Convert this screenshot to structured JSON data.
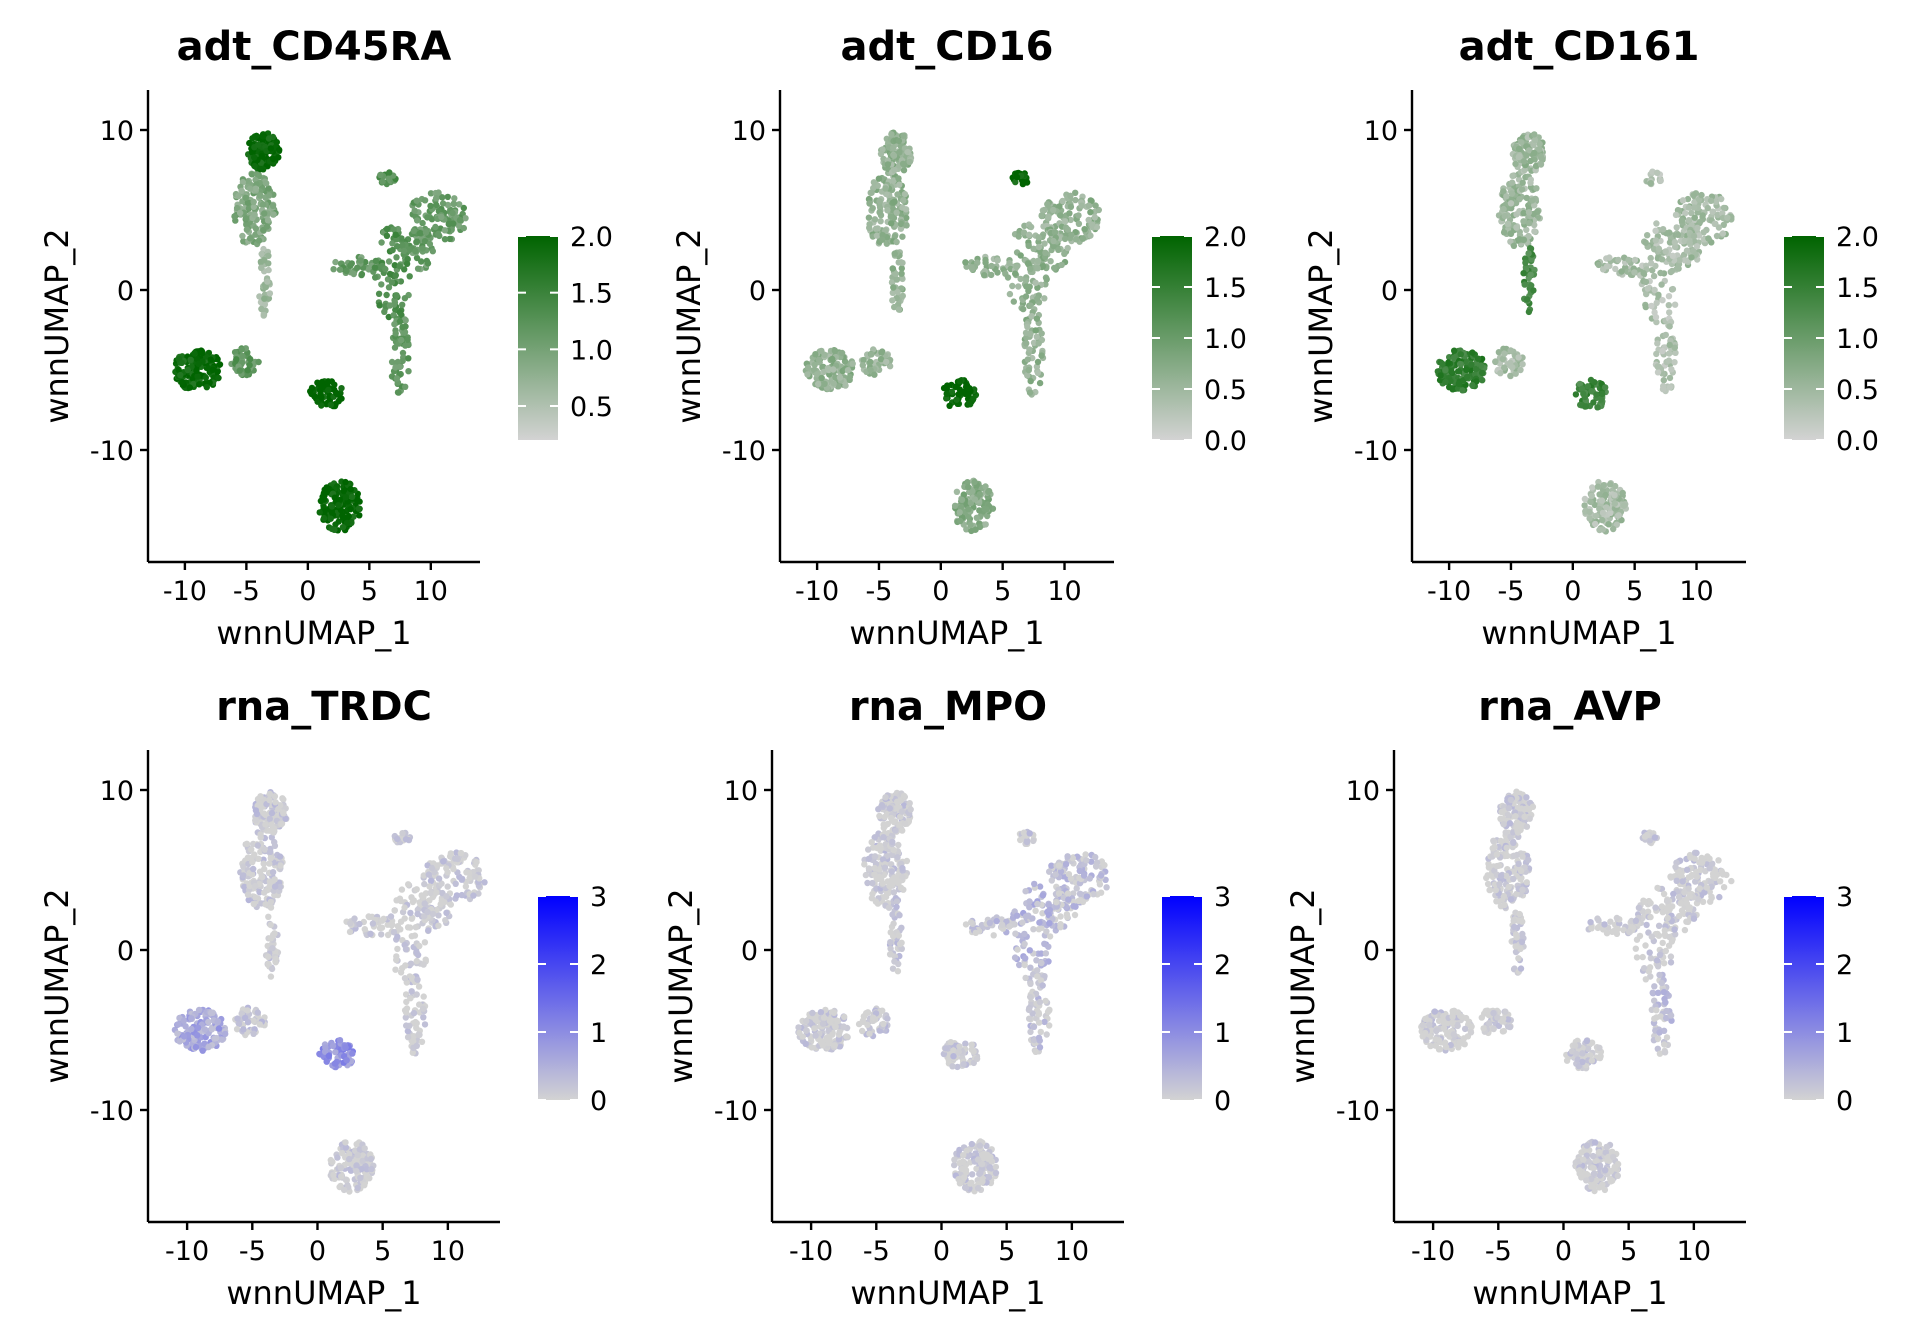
{
  "figure": {
    "xlabel": "wnnUMAP_1",
    "ylabel": "wnnUMAP_2"
  },
  "chart_data": [
    {
      "type": "scatter",
      "title": "adt_CD45RA",
      "xlabel": "wnnUMAP_1",
      "ylabel": "wnnUMAP_2",
      "xlim": [
        -13,
        14
      ],
      "ylim": [
        -17,
        12.5
      ],
      "xticks": [
        -10,
        -5,
        0,
        5,
        10
      ],
      "yticks": [
        10,
        0,
        -10
      ],
      "color_low": "#d3d3d3",
      "color_high": "#006400",
      "legend": {
        "min": 0.2,
        "max": 2.0,
        "ticks": [
          2.0,
          1.5,
          1.0,
          0.5
        ],
        "tick_labels": [
          "2.0",
          "1.5",
          "1.0",
          "0.5"
        ],
        "position": "right"
      },
      "region_levels": [
        0.9,
        1.95,
        0.6,
        1.3,
        1.3,
        1.15,
        1.9,
        1.2,
        2.0,
        1.95
      ]
    },
    {
      "type": "scatter",
      "title": "adt_CD16",
      "xlabel": "wnnUMAP_1",
      "ylabel": "wnnUMAP_2",
      "xlim": [
        -13,
        14
      ],
      "ylim": [
        -17,
        12.5
      ],
      "xticks": [
        -10,
        -5,
        0,
        5,
        10
      ],
      "yticks": [
        10,
        0,
        -10
      ],
      "color_low": "#d3d3d3",
      "color_high": "#006400",
      "legend": {
        "min": 0.0,
        "max": 2.0,
        "ticks": [
          2.0,
          1.5,
          1.0,
          0.5,
          0.0
        ],
        "tick_labels": [
          "2.0",
          "1.5",
          "1.0",
          "0.5",
          "0.0"
        ],
        "position": "right"
      },
      "region_levels": [
        0.6,
        0.6,
        0.6,
        0.6,
        1.95,
        0.6,
        0.6,
        0.55,
        2.0,
        0.7
      ]
    },
    {
      "type": "scatter",
      "title": "adt_CD161",
      "xlabel": "wnnUMAP_1",
      "ylabel": "wnnUMAP_2",
      "xlim": [
        -13,
        14
      ],
      "ylim": [
        -17,
        12.5
      ],
      "xticks": [
        -10,
        -5,
        0,
        5,
        10
      ],
      "yticks": [
        10,
        0,
        -10
      ],
      "color_low": "#d3d3d3",
      "color_high": "#006400",
      "legend": {
        "min": 0.0,
        "max": 2.0,
        "ticks": [
          2.0,
          1.5,
          1.0,
          0.5,
          0.0
        ],
        "tick_labels": [
          "2.0",
          "1.5",
          "1.0",
          "0.5",
          "0.0"
        ],
        "position": "right"
      },
      "region_levels": [
        0.5,
        0.5,
        1.3,
        0.35,
        0.35,
        0.35,
        1.5,
        0.4,
        1.4,
        0.4
      ]
    },
    {
      "type": "scatter",
      "title": "rna_TRDC",
      "xlabel": "wnnUMAP_1",
      "ylabel": "wnnUMAP_2",
      "xlim": [
        -13,
        14
      ],
      "ylim": [
        -17,
        12.5
      ],
      "xticks": [
        -10,
        -5,
        0,
        5,
        10
      ],
      "yticks": [
        10,
        0,
        -10
      ],
      "color_low": "#d3d3d3",
      "color_high": "#0000ff",
      "legend": {
        "min": 0,
        "max": 3,
        "ticks": [
          3,
          2,
          1,
          0
        ],
        "tick_labels": [
          "3",
          "2",
          "1",
          "0"
        ],
        "position": "right"
      },
      "region_levels": [
        0.05,
        0.05,
        0,
        0,
        0,
        0,
        0.6,
        0.05,
        0.9,
        0
      ]
    },
    {
      "type": "scatter",
      "title": "rna_MPO",
      "xlabel": "wnnUMAP_1",
      "ylabel": "wnnUMAP_2",
      "xlim": [
        -13,
        14
      ],
      "ylim": [
        -17,
        12.5
      ],
      "xticks": [
        -10,
        -5,
        0,
        5,
        10
      ],
      "yticks": [
        10,
        0,
        -10
      ],
      "color_low": "#d3d3d3",
      "color_high": "#0000ff",
      "legend": {
        "min": 0,
        "max": 3,
        "ticks": [
          3,
          2,
          1,
          0
        ],
        "tick_labels": [
          "3",
          "2",
          "1",
          "0"
        ],
        "position": "right"
      },
      "region_levels": [
        0.03,
        0.03,
        0.05,
        0.3,
        0.05,
        0.1,
        0,
        0.05,
        0.03,
        0.05
      ]
    },
    {
      "type": "scatter",
      "title": "rna_AVP",
      "xlabel": "wnnUMAP_1",
      "ylabel": "wnnUMAP_2",
      "xlim": [
        -13,
        14
      ],
      "ylim": [
        -17,
        12.5
      ],
      "xticks": [
        -10,
        -5,
        0,
        5,
        10
      ],
      "yticks": [
        10,
        0,
        -10
      ],
      "color_low": "#d3d3d3",
      "color_high": "#0000ff",
      "legend": {
        "min": 0,
        "max": 3,
        "ticks": [
          3,
          2,
          1,
          0
        ],
        "tick_labels": [
          "3",
          "2",
          "1",
          "0"
        ],
        "position": "right"
      },
      "region_levels": [
        0,
        0,
        0,
        0,
        0,
        0.15,
        0,
        0,
        0,
        0
      ]
    }
  ]
}
